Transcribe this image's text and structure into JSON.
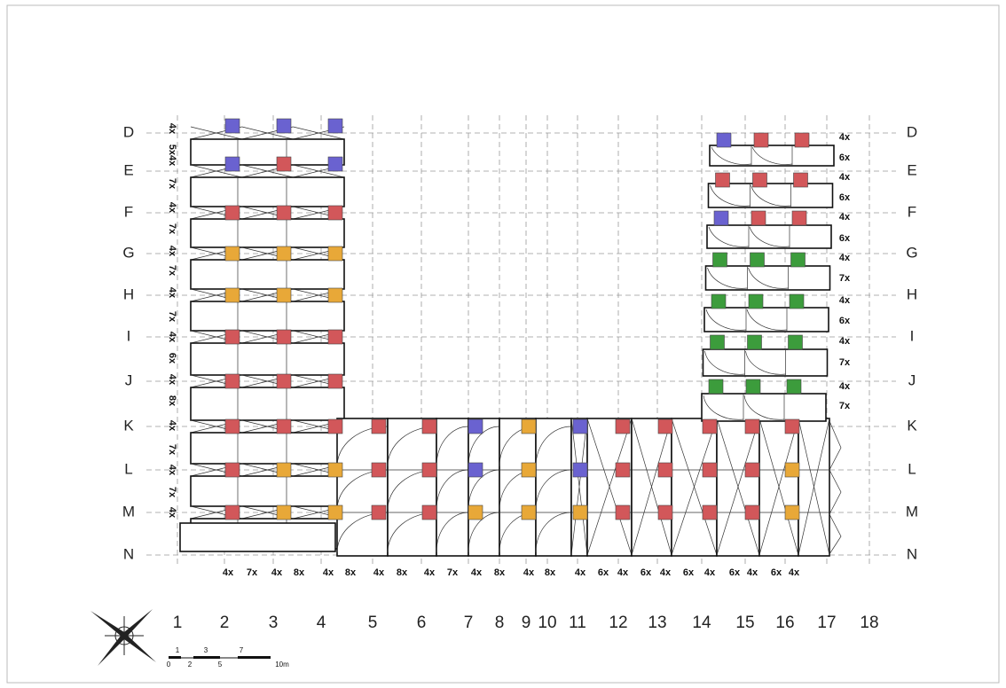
{
  "rows_left": [
    "D",
    "E",
    "F",
    "G",
    "H",
    "I",
    "J",
    "K",
    "L",
    "M",
    "N"
  ],
  "rows_right": [
    "D",
    "E",
    "F",
    "G",
    "H",
    "I",
    "J",
    "K",
    "L",
    "M",
    "N"
  ],
  "columns": [
    "1",
    "2",
    "3",
    "4",
    "5",
    "6",
    "7",
    "8",
    "9",
    "10",
    "11",
    "12",
    "13",
    "14",
    "15",
    "16",
    "17",
    "18"
  ],
  "left_modules": [
    "4x",
    "5x4x",
    "7x",
    "4x",
    "7x",
    "4x",
    "7x",
    "4x",
    "7x",
    "4x",
    "6x",
    "4x",
    "8x",
    "4x",
    "7x",
    "4x",
    "7x",
    "4x"
  ],
  "right_modules": [
    "4x",
    "6x",
    "4x",
    "6x",
    "4x",
    "6x",
    "4x",
    "7x",
    "4x",
    "6x",
    "4x",
    "7x",
    "4x",
    "7x"
  ],
  "bottom_modules": [
    "4x",
    "7x",
    "4x",
    "8x",
    "4x",
    "8x",
    "4x",
    "8x",
    "4x",
    "7x",
    "4x",
    "8x",
    "4x",
    "8x",
    "4x",
    "6x",
    "4x",
    "6x",
    "4x",
    "6x",
    "4x",
    "6x",
    "4x",
    "6x",
    "4x"
  ],
  "scale": {
    "top": [
      "1",
      "3",
      "7"
    ],
    "bottom": [
      "0",
      "2",
      "5",
      "10m"
    ]
  }
}
